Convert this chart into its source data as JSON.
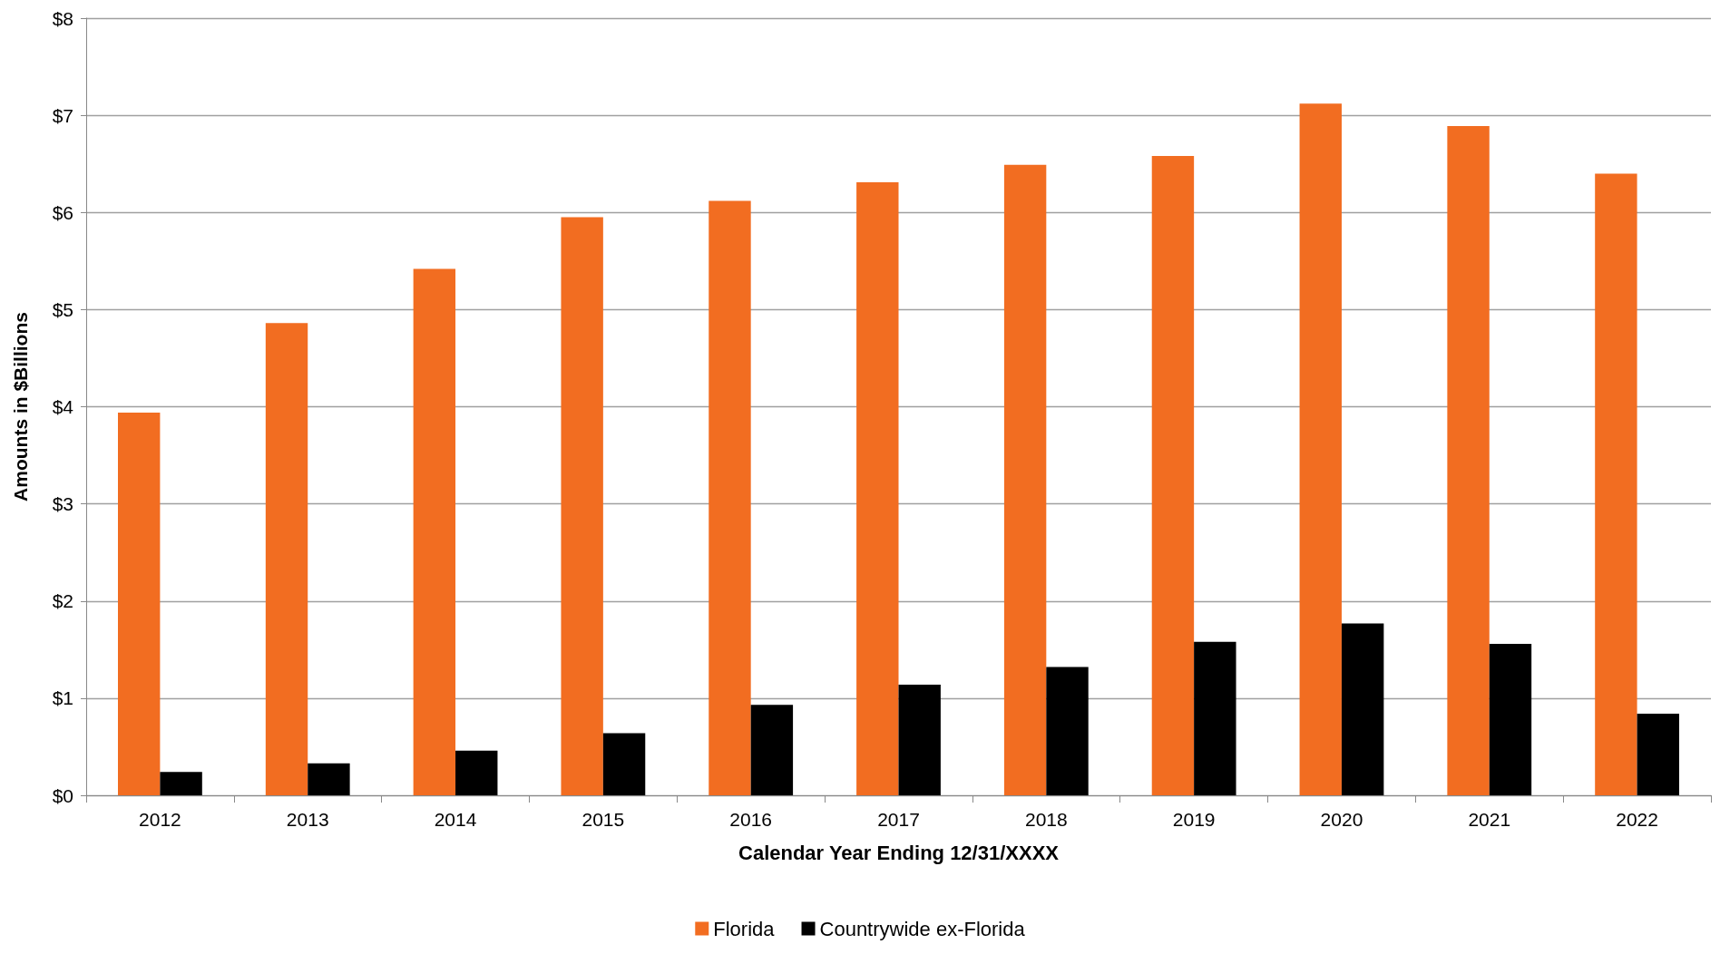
{
  "chart_data": {
    "type": "bar",
    "xlabel": "Calendar Year Ending 12/31/XXXX",
    "ylabel": "Amounts in $Billions",
    "categories": [
      "2012",
      "2013",
      "2014",
      "2015",
      "2016",
      "2017",
      "2018",
      "2019",
      "2020",
      "2021",
      "2022"
    ],
    "series": [
      {
        "name": "Florida",
        "color": "#f26d21",
        "values": [
          3.94,
          4.86,
          5.42,
          5.95,
          6.12,
          6.31,
          6.49,
          6.58,
          7.12,
          6.89,
          6.4
        ]
      },
      {
        "name": "Countrywide ex-Florida",
        "color": "#000000",
        "values": [
          0.24,
          0.33,
          0.46,
          0.64,
          0.93,
          1.14,
          1.32,
          1.58,
          1.77,
          1.56,
          0.84
        ]
      }
    ],
    "ylim": [
      0,
      8
    ],
    "yticks": [
      {
        "value": 0,
        "label": "$0"
      },
      {
        "value": 1,
        "label": "$1"
      },
      {
        "value": 2,
        "label": "$2"
      },
      {
        "value": 3,
        "label": "$3"
      },
      {
        "value": 4,
        "label": "$4"
      },
      {
        "value": 5,
        "label": "$5"
      },
      {
        "value": 6,
        "label": "$6"
      },
      {
        "value": 7,
        "label": "$7"
      },
      {
        "value": 8,
        "label": "$8"
      }
    ],
    "grid": "y",
    "legend": "bottom"
  }
}
